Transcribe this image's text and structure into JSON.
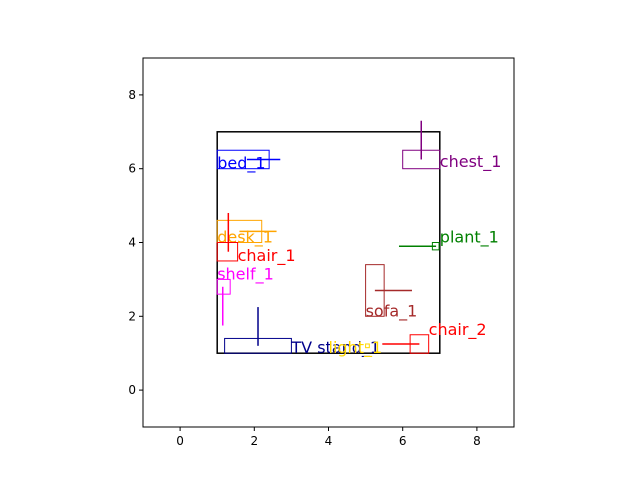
{
  "chart_data": {
    "type": "floorplan",
    "title": "",
    "xlabel": "",
    "ylabel": "",
    "xlim": [
      -1,
      9
    ],
    "ylim": [
      -1,
      9
    ],
    "xticks": [
      0,
      2,
      4,
      6,
      8
    ],
    "yticks": [
      0,
      2,
      4,
      6,
      8
    ],
    "grid": false,
    "room": {
      "x": 1,
      "y": 1,
      "w": 6,
      "h": 6,
      "color": "#000000"
    },
    "objects": [
      {
        "name": "bed_1",
        "color": "#0000ff",
        "box": [
          1,
          6,
          1.4,
          0.5
        ],
        "arrow": [
          1.8,
          6.25,
          2.7,
          6.25
        ],
        "label_at": [
          1.0,
          6.0
        ]
      },
      {
        "name": "chest_1",
        "color": "#800080",
        "box": [
          6.0,
          6.0,
          1.0,
          0.5
        ],
        "arrow": [
          6.5,
          6.25,
          6.5,
          7.3
        ],
        "label_at": [
          7.0,
          6.05
        ]
      },
      {
        "name": "desk_1",
        "color": "#ffa500",
        "box": [
          1,
          4,
          1.2,
          0.6
        ],
        "arrow": [
          1.6,
          4.3,
          2.6,
          4.3
        ],
        "label_at": [
          1.0,
          4.0
        ]
      },
      {
        "name": "chair_1",
        "color": "#ff0000",
        "box": [
          1,
          3.5,
          0.55,
          0.5
        ],
        "arrow": [
          1.3,
          3.75,
          1.3,
          4.8
        ],
        "label_at": [
          1.55,
          3.5
        ]
      },
      {
        "name": "plant_1",
        "color": "#008000",
        "box": [
          6.8,
          3.8,
          0.18,
          0.2
        ],
        "arrow": [
          6.9,
          3.9,
          5.9,
          3.9
        ],
        "label_at": [
          7.0,
          4.0
        ]
      },
      {
        "name": "shelf_1",
        "color": "#ff00ff",
        "box": [
          1,
          2.6,
          0.35,
          0.4
        ],
        "arrow": [
          1.15,
          2.8,
          1.15,
          1.75
        ],
        "label_at": [
          1.0,
          3.0
        ]
      },
      {
        "name": "sofa_1",
        "color": "#a52a2a",
        "box": [
          5.0,
          2.0,
          0.5,
          1.4
        ],
        "arrow": [
          5.25,
          2.7,
          6.25,
          2.7
        ],
        "label_at": [
          5.0,
          2.0
        ]
      },
      {
        "name": "chair_2",
        "color": "#ff0000",
        "box": [
          6.2,
          1.0,
          0.5,
          0.5
        ],
        "arrow": [
          6.45,
          1.25,
          5.45,
          1.25
        ],
        "label_at": [
          6.7,
          1.5
        ]
      },
      {
        "name": "TV stand_1",
        "color": "#00008b",
        "box": [
          1.2,
          1.0,
          1.8,
          0.4
        ],
        "arrow": [
          2.1,
          1.2,
          2.1,
          2.25
        ],
        "label_at": [
          3.0,
          1.0
        ]
      },
      {
        "name": "light_1",
        "color": "#ffd700",
        "box": [
          5.0,
          1.15,
          0.1,
          0.1
        ],
        "arrow": [
          5.0,
          1.2,
          5.0,
          1.2
        ],
        "label_at": [
          4.0,
          1.0
        ]
      }
    ]
  }
}
